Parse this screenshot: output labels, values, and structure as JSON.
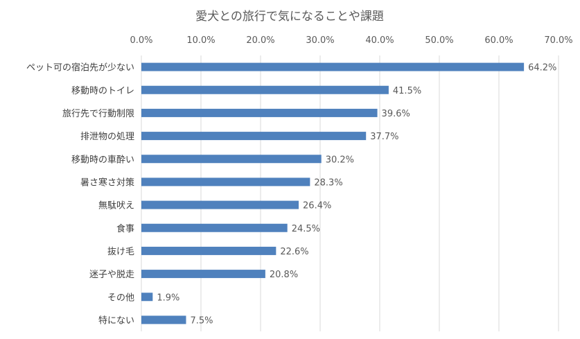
{
  "chart_data": {
    "type": "bar",
    "orientation": "horizontal",
    "title": "愛犬との旅行で気になることや課題",
    "categories": [
      "ペット可の宿泊先が少ない",
      "移動時のトイレ",
      "旅行先で行動制限",
      "排泄物の処理",
      "移動時の車酔い",
      "暑さ寒さ対策",
      "無駄吠え",
      "食事",
      "抜け毛",
      "迷子や脱走",
      "その他",
      "特にない"
    ],
    "values": [
      64.2,
      41.5,
      39.6,
      37.7,
      30.2,
      28.3,
      26.4,
      24.5,
      22.6,
      20.8,
      1.9,
      7.5
    ],
    "data_labels": [
      "64.2%",
      "41.5%",
      "39.6%",
      "37.7%",
      "30.2%",
      "28.3%",
      "26.4%",
      "24.5%",
      "22.6%",
      "20.8%",
      "1.9%",
      "7.5%"
    ],
    "xlim": [
      0,
      70
    ],
    "x_ticks": [
      0,
      10,
      20,
      30,
      40,
      50,
      60,
      70
    ],
    "x_tick_labels": [
      "0.0%",
      "10.0%",
      "20.0%",
      "30.0%",
      "40.0%",
      "50.0%",
      "60.0%",
      "70.0%"
    ],
    "axis_position": "top",
    "grid": true,
    "bar_color": "#4f81bd"
  }
}
